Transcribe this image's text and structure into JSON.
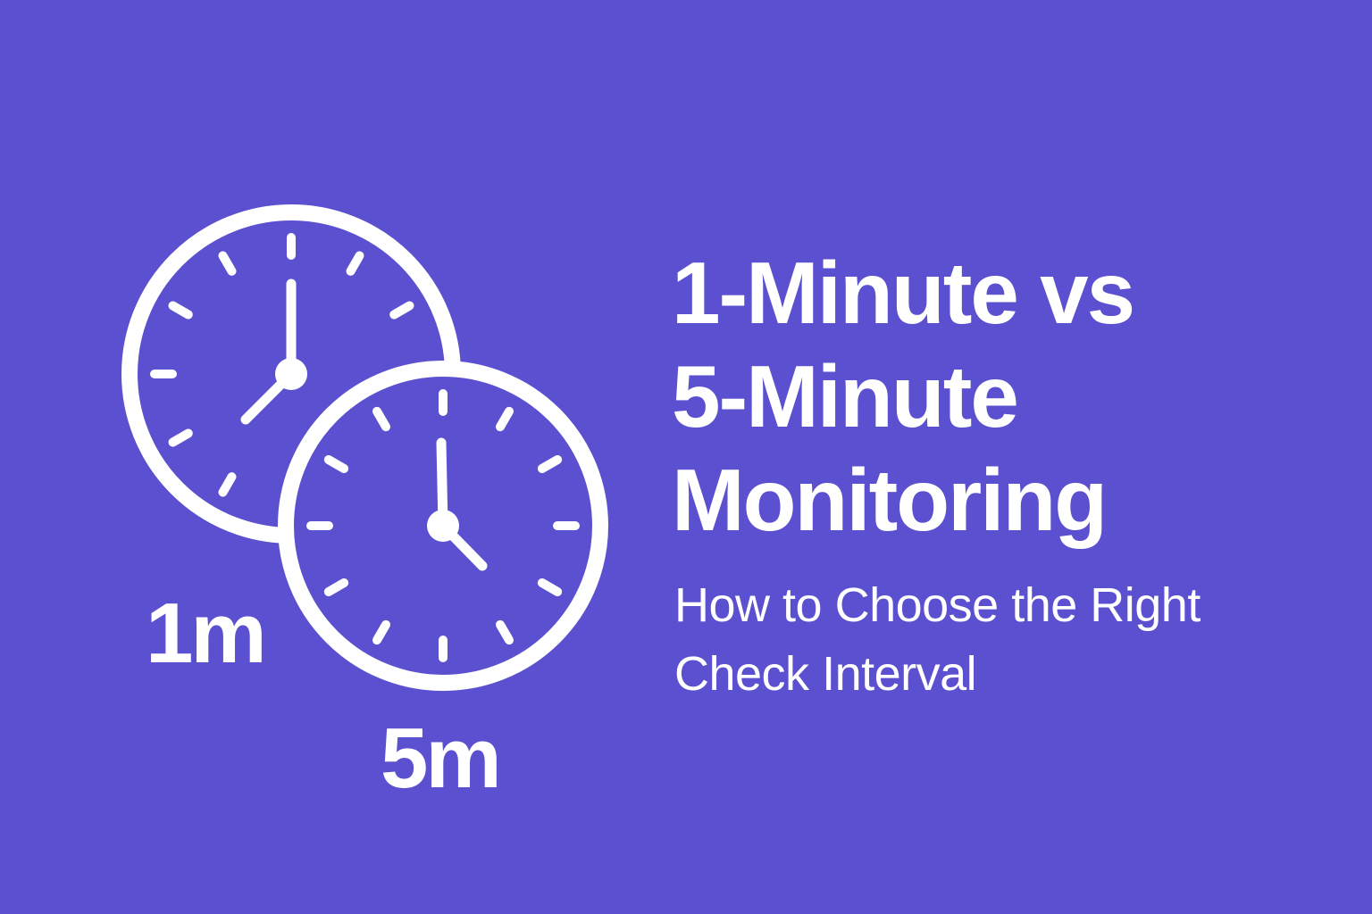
{
  "title_lines": [
    "1-Minute vs",
    "5-Minute",
    "Monitoring"
  ],
  "subtitle_lines": [
    "How to Choose the Right",
    "Check Interval"
  ],
  "clock_labels": {
    "first": "1m",
    "second": "5m"
  },
  "icons": [
    "clock-icon",
    "clock-icon"
  ],
  "colors": {
    "background": "#5B50D0",
    "foreground": "#FFFFFF"
  }
}
